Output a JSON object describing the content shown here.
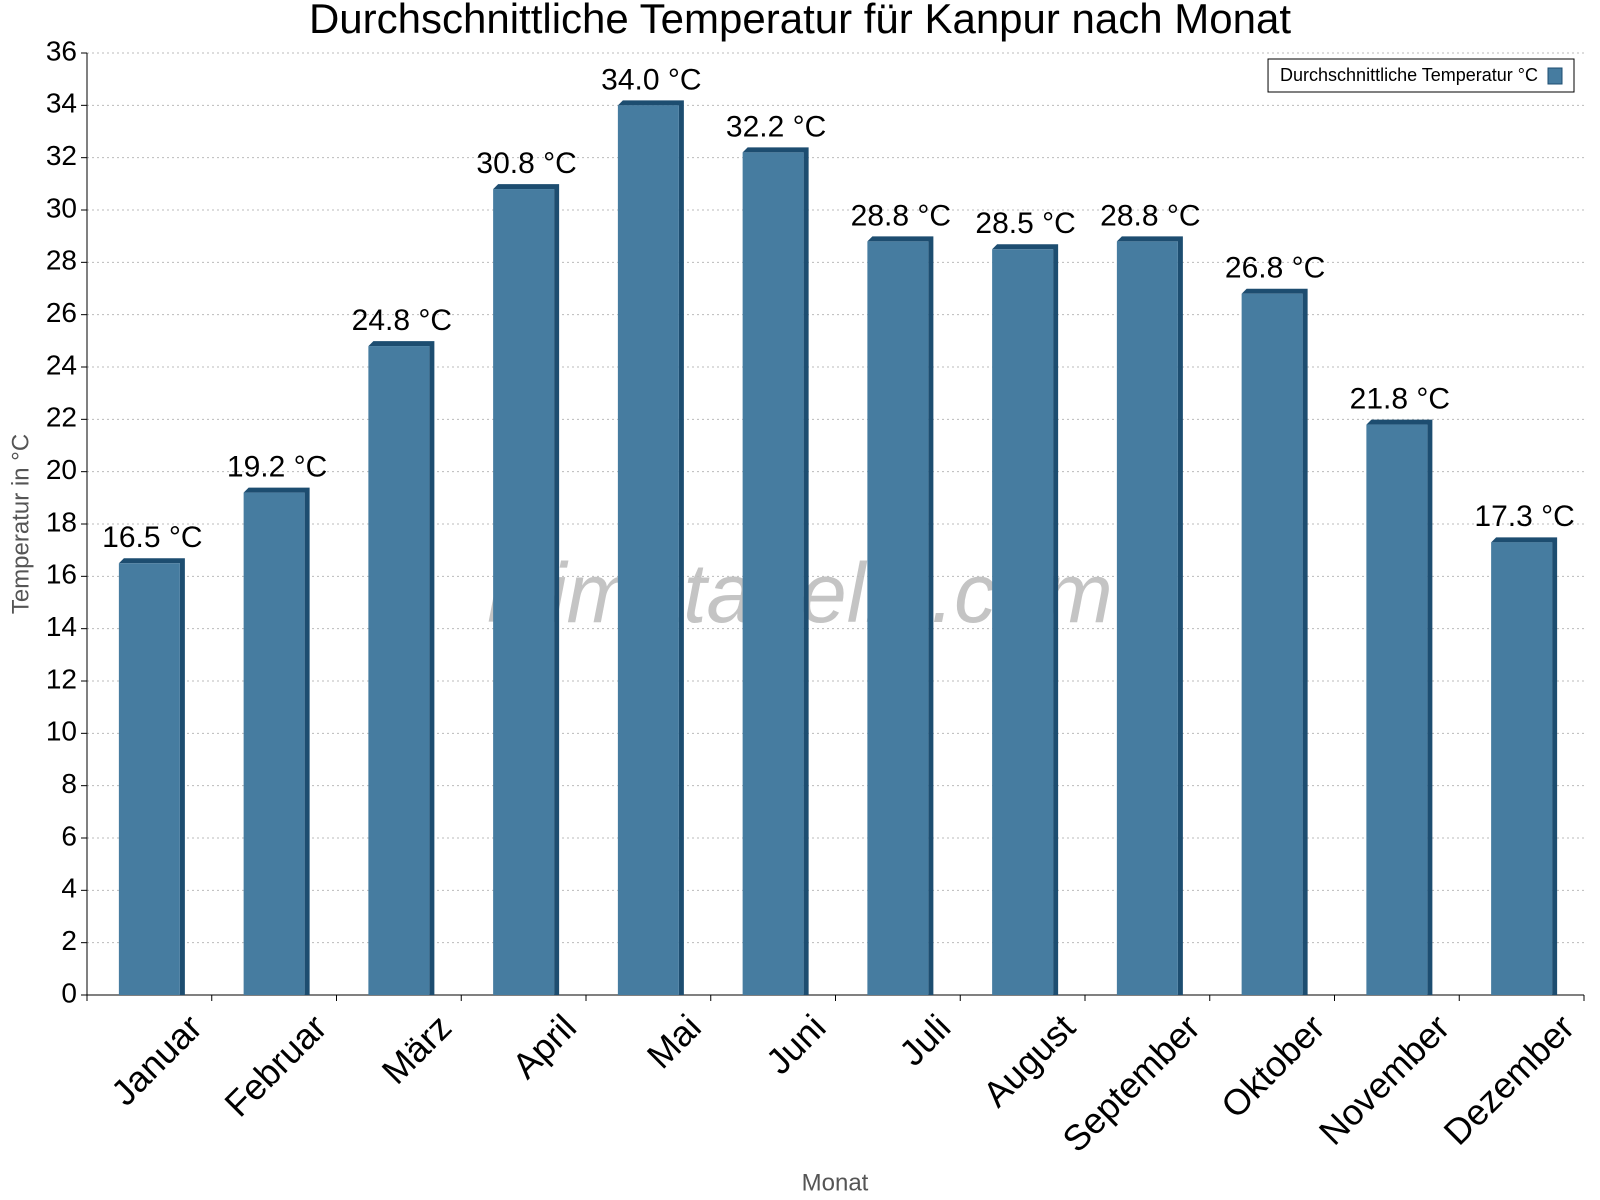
{
  "chart_data": {
    "type": "bar",
    "title": "Durchschnittliche Temperatur für Kanpur nach Monat",
    "xlabel": "Monat",
    "ylabel": "Temperatur in °C",
    "watermark": "klimatabelle.com",
    "categories": [
      "Januar",
      "Februar",
      "März",
      "April",
      "Mai",
      "Juni",
      "Juli",
      "August",
      "September",
      "Oktober",
      "November",
      "Dezember"
    ],
    "series": [
      {
        "name": "Durchschnittliche Temperatur °C",
        "color": "#467ca0",
        "values": [
          16.5,
          19.2,
          24.8,
          30.8,
          34.0,
          32.2,
          28.8,
          28.5,
          28.8,
          26.8,
          21.8,
          17.3
        ],
        "value_labels": [
          "16.5 °C",
          "19.2 °C",
          "24.8 °C",
          "30.8 °C",
          "34.0 °C",
          "32.2 °C",
          "28.8 °C",
          "28.5 °C",
          "28.8 °C",
          "26.8 °C",
          "21.8 °C",
          "17.3 °C"
        ]
      }
    ],
    "ylim": [
      0,
      36
    ],
    "yticks": [
      0,
      2,
      4,
      6,
      8,
      10,
      12,
      14,
      16,
      18,
      20,
      22,
      24,
      26,
      28,
      30,
      32,
      34,
      36
    ],
    "grid": true,
    "legend": "top-right"
  }
}
